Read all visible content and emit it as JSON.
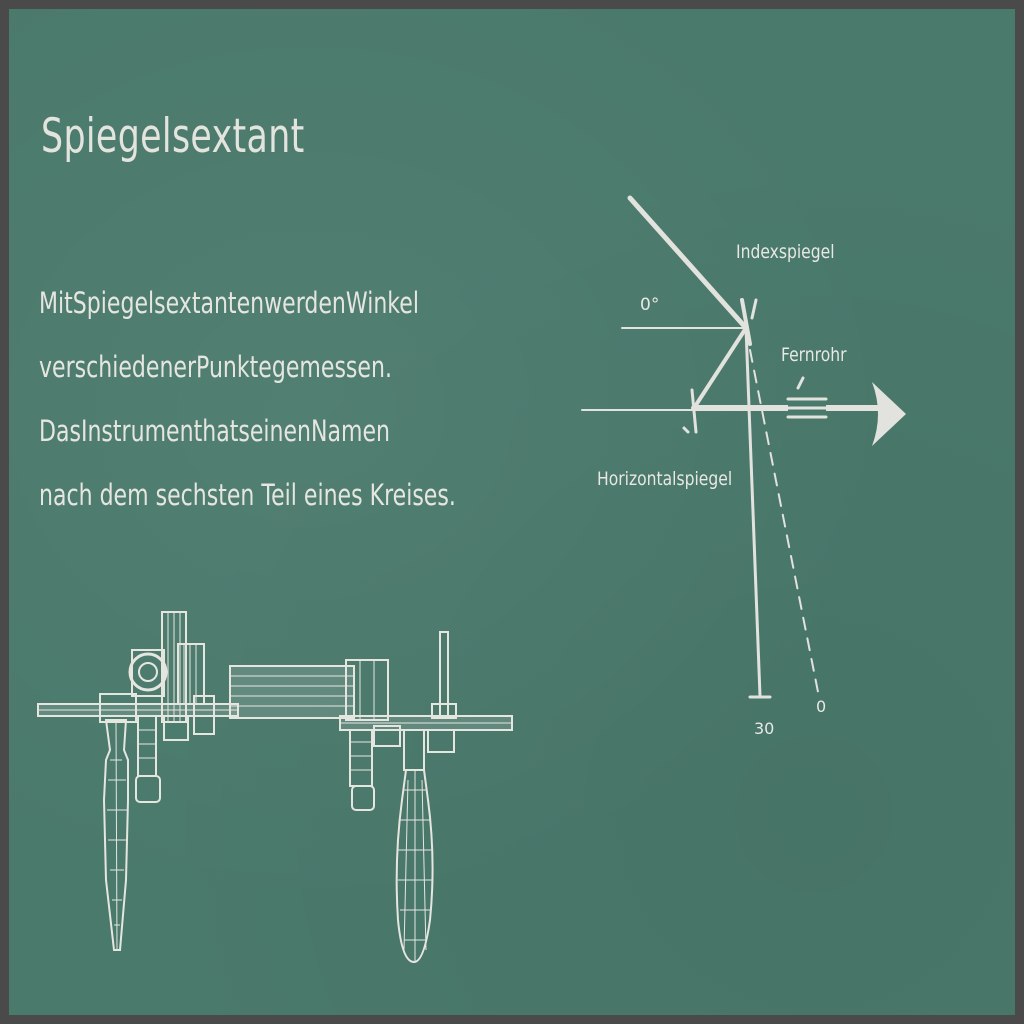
{
  "title": "Spiegelsextant",
  "description_lines": [
    "Mit Spiegelsextanten werden Winkel",
    "verschiedener Punkte gemessen.",
    "Das Instrument hat seinen Namen",
    "nach dem sechsten Teil eines Kreises."
  ],
  "diagram": {
    "labels": {
      "index_mirror": "Indexspiegel",
      "telescope": "Fernrohr",
      "horizon_mirror": "Horizontalspiegel",
      "angle_top": "0°",
      "scale_30": "30",
      "scale_0": "0"
    }
  },
  "colors": {
    "board": "#4a7a6c",
    "frame": "#4a4a4a",
    "chalk": "#e6e6e1"
  }
}
